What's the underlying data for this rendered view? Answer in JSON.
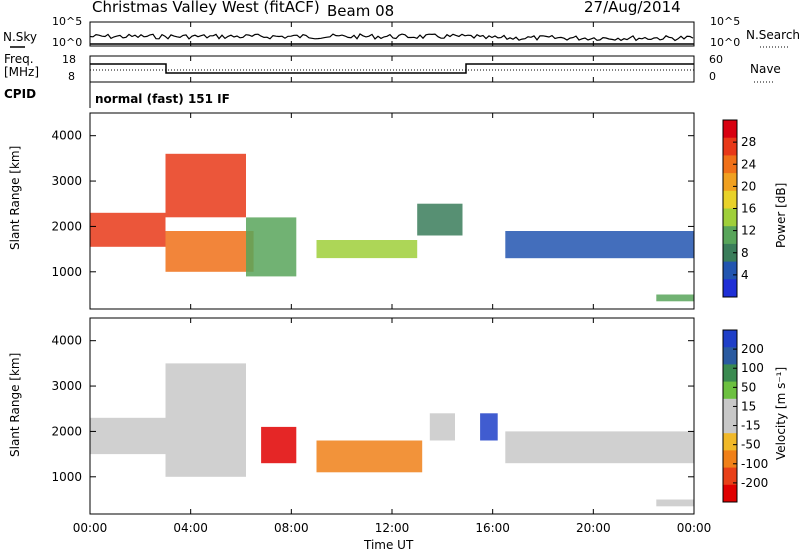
{
  "header": {
    "title": "Christmas Valley West (fitACF)",
    "beam": "Beam 08",
    "date": "27/Aug/2014"
  },
  "top_panels": {
    "noise": {
      "left_label": "N.Sky",
      "left_ticks": [
        "10^5",
        "10^0"
      ],
      "right_ticks": [
        "10^5",
        "10^0"
      ],
      "right_label": "N.Search"
    },
    "freq": {
      "left_label_line1": "Freq.",
      "left_label_line2": "[MHz]",
      "left_ticks": [
        "18",
        "8"
      ],
      "right_ticks": [
        "60",
        "0"
      ],
      "right_label": "Nave"
    },
    "cpid": {
      "label": "CPID",
      "mode_text": "normal (fast) 151 IF"
    }
  },
  "colors": {
    "power_scale": [
      "#1f2fd6",
      "#2255b0",
      "#3a7d5a",
      "#58a55a",
      "#9fcf3a",
      "#e8d22a",
      "#f0a020",
      "#f07018",
      "#e83818",
      "#d80010"
    ],
    "velocity_scale": [
      "#1f3fc8",
      "#2a5aa0",
      "#3a8a50",
      "#6cc040",
      "#c8c8c8",
      "#c8c8c8",
      "#f0b828",
      "#f08018",
      "#e84018",
      "#e00000"
    ]
  },
  "chart_data": [
    {
      "type": "heatmap",
      "name": "Power",
      "ylabel": "Slant Range [km]",
      "xlabel": "Time UT",
      "x_ticks": [
        "00:00",
        "04:00",
        "08:00",
        "12:00",
        "16:00",
        "20:00",
        "00:00"
      ],
      "xlim_hours": [
        0,
        24
      ],
      "y_ticks": [
        1000,
        2000,
        3000,
        4000
      ],
      "ylim_km": [
        180,
        4500
      ],
      "colorbar": {
        "label": "Power [dB]",
        "ticks": [
          "4",
          "8",
          "12",
          "16",
          "20",
          "24",
          "28"
        ],
        "range": [
          0,
          30
        ]
      },
      "features": [
        {
          "t0": 0.0,
          "t1": 3.0,
          "r0": 1550,
          "r1": 2300,
          "value": 26
        },
        {
          "t0": 3.0,
          "t1": 6.5,
          "r0": 1000,
          "r1": 1900,
          "value": 22
        },
        {
          "t0": 3.0,
          "t1": 6.2,
          "r0": 2200,
          "r1": 3600,
          "value": 25
        },
        {
          "t0": 6.2,
          "t1": 8.2,
          "r0": 900,
          "r1": 2200,
          "value": 10
        },
        {
          "t0": 9.0,
          "t1": 13.0,
          "r0": 1300,
          "r1": 1700,
          "value": 12
        },
        {
          "t0": 13.0,
          "t1": 14.8,
          "r0": 1800,
          "r1": 2500,
          "value": 8
        },
        {
          "t0": 16.5,
          "t1": 24.0,
          "r0": 1300,
          "r1": 1900,
          "value": 4
        },
        {
          "t0": 22.5,
          "t1": 24.0,
          "r0": 350,
          "r1": 500,
          "value": 10
        }
      ]
    },
    {
      "type": "heatmap",
      "name": "Velocity",
      "ylabel": "Slant Range [km]",
      "xlabel": "Time UT",
      "x_ticks": [
        "00:00",
        "04:00",
        "08:00",
        "12:00",
        "16:00",
        "20:00",
        "00:00"
      ],
      "xlim_hours": [
        0,
        24
      ],
      "y_ticks": [
        1000,
        2000,
        3000,
        4000
      ],
      "ylim_km": [
        180,
        4500
      ],
      "colorbar": {
        "label": "Velocity [m s⁻¹]",
        "ticks": [
          "200",
          "100",
          "50",
          "15",
          "-15",
          "-50",
          "-100",
          "-200"
        ],
        "range": [
          -250,
          250
        ]
      },
      "features": [
        {
          "t0": 0.0,
          "t1": 3.0,
          "r0": 1500,
          "r1": 2300,
          "value": 0
        },
        {
          "t0": 3.0,
          "t1": 6.2,
          "r0": 1000,
          "r1": 3500,
          "value": -30
        },
        {
          "t0": 6.8,
          "t1": 8.2,
          "r0": 1300,
          "r1": 2100,
          "value": -220
        },
        {
          "t0": 9.0,
          "t1": 13.2,
          "r0": 1100,
          "r1": 1800,
          "value": -120
        },
        {
          "t0": 13.5,
          "t1": 14.5,
          "r0": 1800,
          "r1": 2400,
          "value": 30
        },
        {
          "t0": 15.5,
          "t1": 16.2,
          "r0": 1800,
          "r1": 2400,
          "value": 220
        },
        {
          "t0": 16.5,
          "t1": 24.0,
          "r0": 1300,
          "r1": 2000,
          "value": 0
        },
        {
          "t0": 22.5,
          "t1": 24.0,
          "r0": 350,
          "r1": 500,
          "value": -40
        }
      ]
    }
  ]
}
